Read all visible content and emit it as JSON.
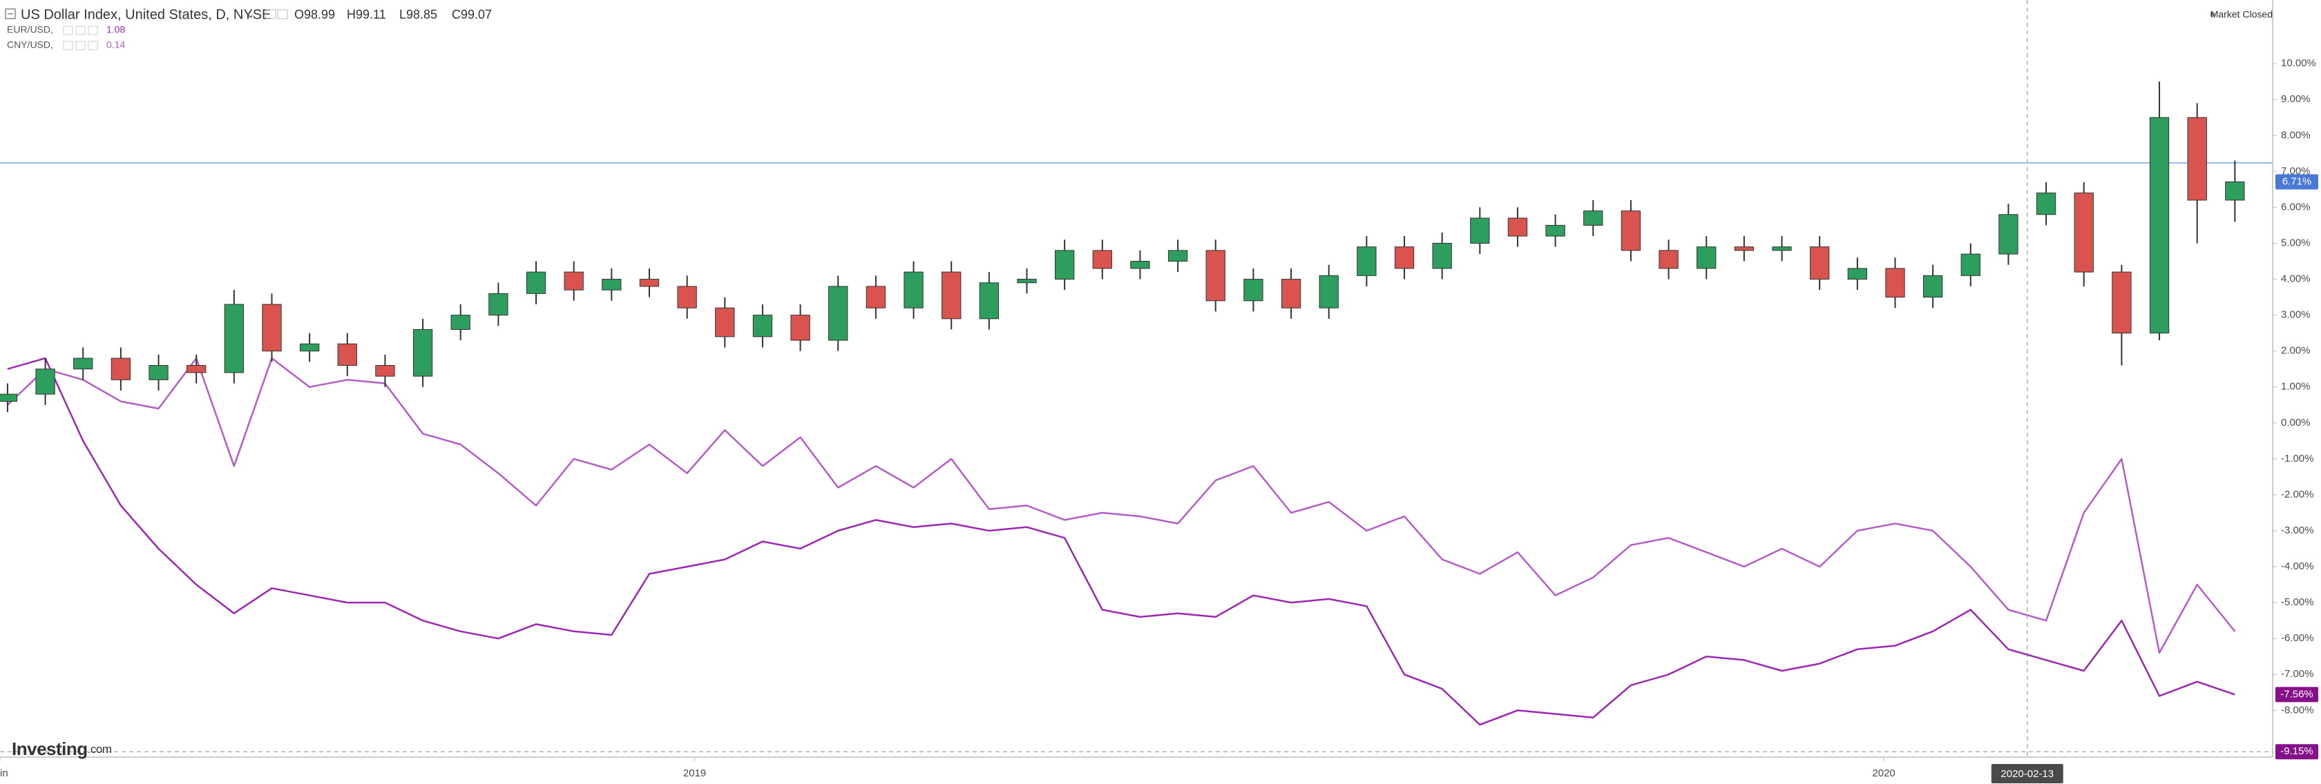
{
  "chart_data": {
    "type": "candlestick",
    "title": "US Dollar Index, United States, D, NYSE",
    "ohlc_labels": [
      "O98.99",
      "H99.11",
      "L98.85",
      "C99.07"
    ],
    "status": "Market Closed",
    "logo": {
      "brand": "Investing",
      "suffix": ".com"
    },
    "up_color": "#2e9e5e",
    "down_color": "#d9534f",
    "open": [
      0.6,
      0.8,
      1.5,
      1.8,
      1.2,
      1.6,
      1.4,
      3.3,
      2.0,
      2.2,
      1.6,
      1.3,
      2.6,
      3.0,
      3.6,
      4.2,
      3.7,
      4.0,
      3.8,
      3.2,
      2.4,
      3.0,
      2.3,
      3.8,
      3.2,
      4.2,
      2.9,
      3.9,
      4.0,
      4.8,
      4.3,
      4.5,
      4.8,
      3.4,
      4.0,
      3.2,
      4.1,
      4.9,
      4.3,
      5.0,
      5.7,
      5.2,
      5.5,
      5.9,
      4.8,
      4.3,
      4.9,
      4.8,
      4.9,
      4.0,
      4.3,
      3.5,
      4.1,
      4.7,
      5.8,
      6.4,
      4.2,
      2.5,
      8.5,
      6.2
    ],
    "high": [
      1.1,
      1.8,
      2.1,
      2.1,
      1.9,
      1.9,
      3.7,
      3.6,
      2.5,
      2.5,
      1.9,
      2.9,
      3.3,
      3.9,
      4.5,
      4.5,
      4.3,
      4.3,
      4.1,
      3.5,
      3.3,
      3.3,
      4.1,
      4.1,
      4.5,
      4.5,
      4.2,
      4.3,
      5.1,
      5.1,
      4.8,
      5.1,
      5.1,
      4.3,
      4.3,
      4.4,
      5.2,
      5.2,
      5.3,
      6.0,
      6.0,
      5.8,
      6.2,
      6.2,
      5.1,
      5.2,
      5.2,
      5.2,
      5.2,
      4.6,
      4.6,
      4.4,
      5.0,
      6.1,
      6.7,
      6.7,
      4.4,
      9.5,
      8.9,
      7.3
    ],
    "low": [
      0.3,
      0.5,
      1.2,
      0.9,
      0.9,
      1.1,
      1.1,
      1.7,
      1.7,
      1.3,
      1.0,
      1.0,
      2.3,
      2.7,
      3.3,
      3.4,
      3.4,
      3.5,
      2.9,
      2.1,
      2.1,
      2.0,
      2.0,
      2.9,
      2.9,
      2.6,
      2.6,
      3.6,
      3.7,
      4.0,
      4.0,
      4.2,
      3.1,
      3.1,
      2.9,
      2.9,
      3.8,
      4.0,
      4.0,
      4.7,
      4.9,
      4.9,
      5.2,
      4.5,
      4.0,
      4.0,
      4.5,
      4.5,
      3.7,
      3.7,
      3.2,
      3.2,
      3.8,
      4.4,
      5.5,
      3.8,
      1.6,
      2.3,
      5.0,
      5.6
    ],
    "close": [
      0.8,
      1.5,
      1.8,
      1.2,
      1.6,
      1.4,
      3.3,
      2.0,
      2.2,
      1.6,
      1.3,
      2.6,
      3.0,
      3.6,
      4.2,
      3.7,
      4.0,
      3.8,
      3.2,
      2.4,
      3.0,
      2.3,
      3.8,
      3.2,
      4.2,
      2.9,
      3.9,
      4.0,
      4.8,
      4.3,
      4.5,
      4.8,
      3.4,
      4.0,
      3.2,
      4.1,
      4.9,
      4.3,
      5.0,
      5.7,
      5.2,
      5.5,
      5.9,
      4.8,
      4.3,
      4.9,
      4.8,
      4.9,
      4.0,
      4.3,
      3.5,
      4.1,
      4.7,
      5.8,
      6.4,
      4.2,
      2.5,
      8.5,
      6.2,
      6.71
    ],
    "series": [
      {
        "name": "EUR/USD,",
        "legend_value": "1.08",
        "color": "#9c27b0",
        "values": [
          1.5,
          1.8,
          -0.5,
          -2.3,
          -3.5,
          -4.5,
          -5.3,
          -4.6,
          -4.8,
          -5.0,
          -5.0,
          -5.5,
          -5.8,
          -6.0,
          -5.6,
          -5.8,
          -5.9,
          -4.2,
          -4.0,
          -3.8,
          -3.3,
          -3.5,
          -3.0,
          -2.7,
          -2.9,
          -2.8,
          -3.0,
          -2.9,
          -3.2,
          -5.2,
          -5.4,
          -5.3,
          -5.4,
          -4.8,
          -5.0,
          -4.9,
          -5.1,
          -7.0,
          -7.4,
          -8.4,
          -8.0,
          -8.1,
          -8.2,
          -7.3,
          -7.0,
          -6.5,
          -6.6,
          -6.9,
          -6.7,
          -6.3,
          -6.2,
          -5.8,
          -5.2,
          -6.3,
          -6.6,
          -6.9,
          -5.5,
          -7.6,
          -7.2,
          -7.56
        ]
      },
      {
        "name": "CNY/USD,",
        "legend_value": "0.14",
        "color": "#b65cc9",
        "values": [
          0.5,
          1.5,
          1.2,
          0.6,
          0.4,
          1.8,
          -1.2,
          1.8,
          1.0,
          1.2,
          1.1,
          -0.3,
          -0.6,
          -1.4,
          -2.3,
          -1.0,
          -1.3,
          -0.6,
          -1.4,
          -0.2,
          -1.2,
          -0.4,
          -1.8,
          -1.2,
          -1.8,
          -1.0,
          -2.4,
          -2.3,
          -2.7,
          -2.5,
          -2.6,
          -2.8,
          -1.6,
          -1.2,
          -2.5,
          -2.2,
          -3.0,
          -2.6,
          -3.8,
          -4.2,
          -3.6,
          -4.8,
          -4.3,
          -3.4,
          -3.2,
          -3.6,
          -4.0,
          -3.5,
          -4.0,
          -3.0,
          -2.8,
          -3.0,
          -4.0,
          -5.2,
          -5.5,
          -2.5,
          -1.0,
          -6.4,
          -4.5,
          -5.8
        ]
      }
    ],
    "xlim": [
      -0.2,
      60
    ],
    "xticks": [
      {
        "value": -0.2,
        "label": "in"
      },
      {
        "value": 18.2,
        "label": "2019"
      },
      {
        "value": 49.7,
        "label": "2020"
      }
    ],
    "crosshair": {
      "value": 53.5,
      "label": "2020-02-13"
    },
    "ylim": [
      -9.3,
      11.77
    ],
    "yticks": [
      {
        "value": -8,
        "label": "-8.00%"
      },
      {
        "value": -7,
        "label": "-7.00%"
      },
      {
        "value": -6,
        "label": "-6.00%"
      },
      {
        "value": -5,
        "label": "-5.00%"
      },
      {
        "value": -4,
        "label": "-4.00%"
      },
      {
        "value": -3,
        "label": "-3.00%"
      },
      {
        "value": -2,
        "label": "-2.00%"
      },
      {
        "value": -1,
        "label": "-1.00%"
      },
      {
        "value": 0,
        "label": "0.00%"
      },
      {
        "value": 1,
        "label": "1.00%"
      },
      {
        "value": 2,
        "label": "2.00%"
      },
      {
        "value": 3,
        "label": "3.00%"
      },
      {
        "value": 4,
        "label": "4.00%"
      },
      {
        "value": 5,
        "label": "5.00%"
      },
      {
        "value": 6,
        "label": "6.00%"
      },
      {
        "value": 7,
        "label": "7.00%"
      },
      {
        "value": 8,
        "label": "8.00%"
      },
      {
        "value": 9,
        "label": "9.00%"
      },
      {
        "value": 10,
        "label": "10.00%"
      }
    ],
    "badges": [
      {
        "value": 6.71,
        "label": "6.71%",
        "color": "#4a78d6"
      },
      {
        "value": -7.56,
        "label": "-7.56%",
        "color": "#86108a"
      },
      {
        "value": -9.15,
        "label": "-9.15%",
        "color": "#86108a",
        "dashed_line": true
      }
    ]
  }
}
